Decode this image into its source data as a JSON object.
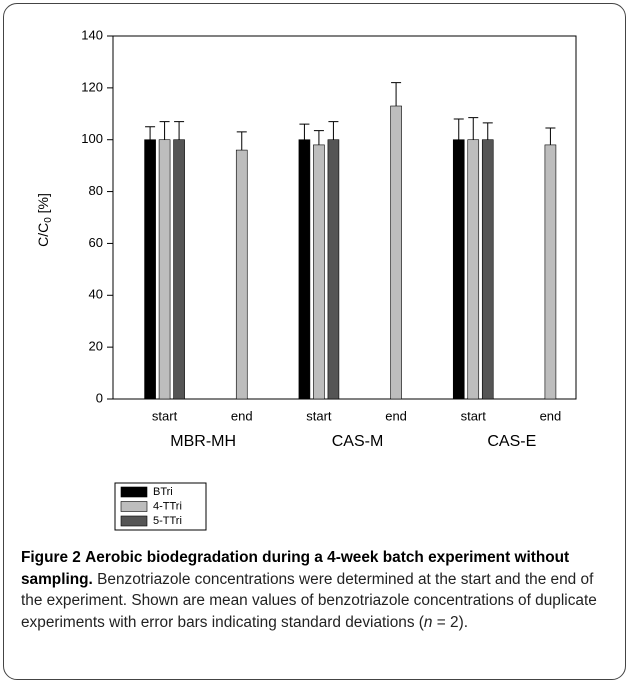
{
  "chart_data": {
    "type": "bar",
    "ylabel": "C/C",
    "ylabel_sub": "0",
    "ylabel_suffix": " [%]",
    "categories": [
      "start",
      "end",
      "start",
      "end",
      "start",
      "end"
    ],
    "groups": [
      "MBR-MH",
      "CAS-M",
      "CAS-E"
    ],
    "series": [
      {
        "name": "BTri",
        "color": "#000000",
        "values": [
          100,
          null,
          100,
          null,
          100,
          null
        ],
        "errors": [
          5,
          null,
          6,
          null,
          8,
          null
        ]
      },
      {
        "name": "4-TTri",
        "color": "#bdbdbd",
        "values": [
          100,
          96,
          98,
          113,
          100,
          98
        ],
        "errors": [
          7,
          7,
          5.5,
          9,
          8.5,
          6.5
        ]
      },
      {
        "name": "5-TTri",
        "color": "#555555",
        "values": [
          100,
          null,
          100,
          null,
          100,
          null
        ],
        "errors": [
          7,
          null,
          7,
          null,
          6.5,
          null
        ]
      }
    ],
    "ylim": [
      0,
      140
    ],
    "yticks": [
      0,
      20,
      40,
      60,
      80,
      100,
      120,
      140
    ],
    "grid": false,
    "legend": "bottom-left"
  },
  "caption": {
    "label": "Figure 2",
    "title": "Aerobic biodegradation during a 4-week batch experiment without sampling.",
    "body": "Benzotriazole concentrations were determined at the start and the end of the experiment. Shown are mean values of benzotriazole concentrations of duplicate experiments with error bars indicating standard deviations (",
    "italic": "n",
    "end": " = 2)."
  }
}
